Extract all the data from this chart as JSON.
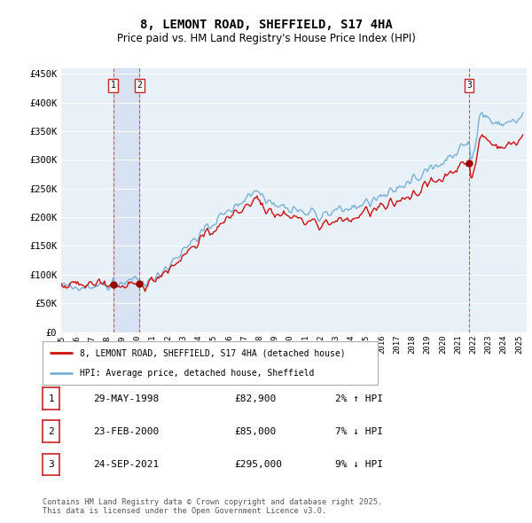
{
  "title": "8, LEMONT ROAD, SHEFFIELD, S17 4HA",
  "subtitle": "Price paid vs. HM Land Registry's House Price Index (HPI)",
  "ylim": [
    0,
    460000
  ],
  "yticks": [
    0,
    50000,
    100000,
    150000,
    200000,
    250000,
    300000,
    350000,
    400000,
    450000
  ],
  "ytick_labels": [
    "£0",
    "£50K",
    "£100K",
    "£150K",
    "£200K",
    "£250K",
    "£300K",
    "£350K",
    "£400K",
    "£450K"
  ],
  "x_start_year": 1995.0,
  "x_end_year": 2025.5,
  "background_color": "#ffffff",
  "plot_bg_color": "#e8f0f8",
  "grid_color": "#ffffff",
  "hpi_line_color": "#7ab0d4",
  "price_line_color": "#cc1111",
  "sale_marker_color": "#990000",
  "transactions": [
    {
      "num": 1,
      "date_label": "29-MAY-1998",
      "price": 82900,
      "year": 1998.41,
      "pct": "2%",
      "dir": "↑"
    },
    {
      "num": 2,
      "date_label": "23-FEB-2000",
      "price": 85000,
      "year": 2000.14,
      "pct": "7%",
      "dir": "↓"
    },
    {
      "num": 3,
      "date_label": "24-SEP-2021",
      "price": 295000,
      "year": 2021.73,
      "pct": "9%",
      "dir": "↓"
    }
  ],
  "legend_entries": [
    "8, LEMONT ROAD, SHEFFIELD, S17 4HA (detached house)",
    "HPI: Average price, detached house, Sheffield"
  ],
  "footnote1": "Contains HM Land Registry data © Crown copyright and database right 2025.",
  "footnote2": "This data is licensed under the Open Government Licence v3.0."
}
